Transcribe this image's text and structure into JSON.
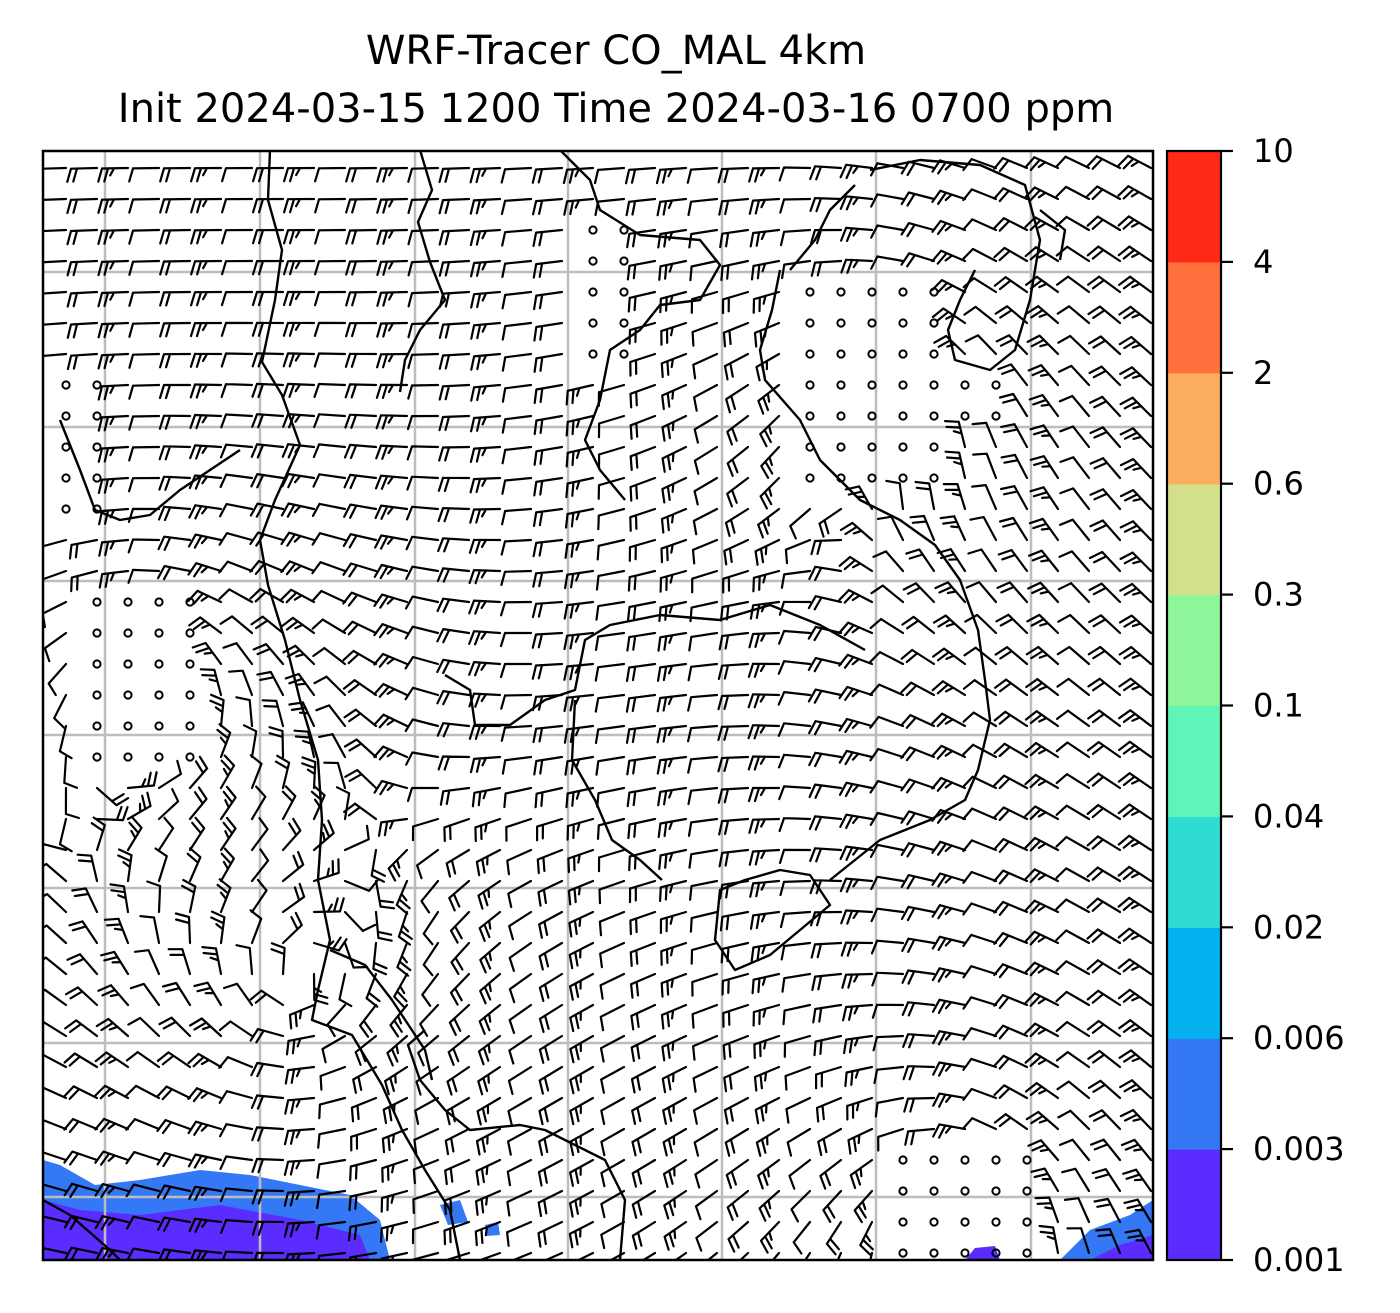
{
  "title": {
    "line1": "WRF-Tracer CO_MAL 4km",
    "line2": "Init 2024-03-15 1200 Time 2024-03-16 0700 ppm"
  },
  "map": {
    "layers": [
      "coastlines",
      "lat-lon-gridlines",
      "wind-barbs",
      "tracer-concentration-fill"
    ],
    "gridline_color": "#bdbdbd",
    "coastline_color": "#000000",
    "barb_color": "#000000"
  },
  "colorbar": {
    "levels": [
      "0.001",
      "0.003",
      "0.006",
      "0.02",
      "0.04",
      "0.1",
      "0.3",
      "0.6",
      "2",
      "4",
      "10"
    ],
    "colors": [
      "#5b2cff",
      "#3478f6",
      "#03b1ee",
      "#2fdcd2",
      "#5ff5b8",
      "#8ff59a",
      "#d3e08a",
      "#fdad60",
      "#ff703c",
      "#fe2a16"
    ]
  }
}
